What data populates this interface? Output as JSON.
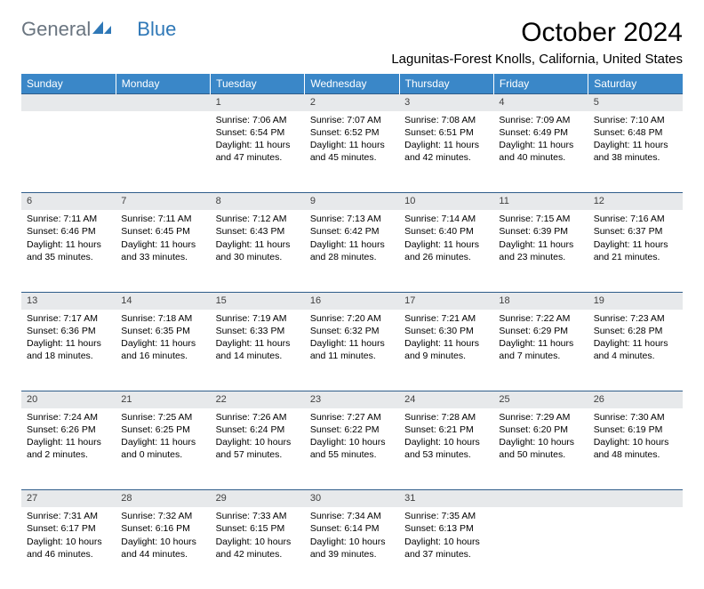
{
  "logo": {
    "part1": "General",
    "part2": "Blue"
  },
  "title": "October 2024",
  "location": "Lagunitas-Forest Knolls, California, United States",
  "colors": {
    "header_bg": "#3a87c8",
    "header_text": "#ffffff",
    "rule": "#2f5d8a",
    "daynum_bg": "#e7e9eb",
    "logo_gray": "#6a7580",
    "logo_blue": "#2f78b7"
  },
  "fonts": {
    "title_size": 30,
    "location_size": 15,
    "header_size": 12,
    "cell_size": 10.5
  },
  "days": [
    "Sunday",
    "Monday",
    "Tuesday",
    "Wednesday",
    "Thursday",
    "Friday",
    "Saturday"
  ],
  "weeks": [
    [
      null,
      null,
      {
        "n": "1",
        "sunrise": "7:06 AM",
        "sunset": "6:54 PM",
        "dl": "11 hours and 47 minutes."
      },
      {
        "n": "2",
        "sunrise": "7:07 AM",
        "sunset": "6:52 PM",
        "dl": "11 hours and 45 minutes."
      },
      {
        "n": "3",
        "sunrise": "7:08 AM",
        "sunset": "6:51 PM",
        "dl": "11 hours and 42 minutes."
      },
      {
        "n": "4",
        "sunrise": "7:09 AM",
        "sunset": "6:49 PM",
        "dl": "11 hours and 40 minutes."
      },
      {
        "n": "5",
        "sunrise": "7:10 AM",
        "sunset": "6:48 PM",
        "dl": "11 hours and 38 minutes."
      }
    ],
    [
      {
        "n": "6",
        "sunrise": "7:11 AM",
        "sunset": "6:46 PM",
        "dl": "11 hours and 35 minutes."
      },
      {
        "n": "7",
        "sunrise": "7:11 AM",
        "sunset": "6:45 PM",
        "dl": "11 hours and 33 minutes."
      },
      {
        "n": "8",
        "sunrise": "7:12 AM",
        "sunset": "6:43 PM",
        "dl": "11 hours and 30 minutes."
      },
      {
        "n": "9",
        "sunrise": "7:13 AM",
        "sunset": "6:42 PM",
        "dl": "11 hours and 28 minutes."
      },
      {
        "n": "10",
        "sunrise": "7:14 AM",
        "sunset": "6:40 PM",
        "dl": "11 hours and 26 minutes."
      },
      {
        "n": "11",
        "sunrise": "7:15 AM",
        "sunset": "6:39 PM",
        "dl": "11 hours and 23 minutes."
      },
      {
        "n": "12",
        "sunrise": "7:16 AM",
        "sunset": "6:37 PM",
        "dl": "11 hours and 21 minutes."
      }
    ],
    [
      {
        "n": "13",
        "sunrise": "7:17 AM",
        "sunset": "6:36 PM",
        "dl": "11 hours and 18 minutes."
      },
      {
        "n": "14",
        "sunrise": "7:18 AM",
        "sunset": "6:35 PM",
        "dl": "11 hours and 16 minutes."
      },
      {
        "n": "15",
        "sunrise": "7:19 AM",
        "sunset": "6:33 PM",
        "dl": "11 hours and 14 minutes."
      },
      {
        "n": "16",
        "sunrise": "7:20 AM",
        "sunset": "6:32 PM",
        "dl": "11 hours and 11 minutes."
      },
      {
        "n": "17",
        "sunrise": "7:21 AM",
        "sunset": "6:30 PM",
        "dl": "11 hours and 9 minutes."
      },
      {
        "n": "18",
        "sunrise": "7:22 AM",
        "sunset": "6:29 PM",
        "dl": "11 hours and 7 minutes."
      },
      {
        "n": "19",
        "sunrise": "7:23 AM",
        "sunset": "6:28 PM",
        "dl": "11 hours and 4 minutes."
      }
    ],
    [
      {
        "n": "20",
        "sunrise": "7:24 AM",
        "sunset": "6:26 PM",
        "dl": "11 hours and 2 minutes."
      },
      {
        "n": "21",
        "sunrise": "7:25 AM",
        "sunset": "6:25 PM",
        "dl": "11 hours and 0 minutes."
      },
      {
        "n": "22",
        "sunrise": "7:26 AM",
        "sunset": "6:24 PM",
        "dl": "10 hours and 57 minutes."
      },
      {
        "n": "23",
        "sunrise": "7:27 AM",
        "sunset": "6:22 PM",
        "dl": "10 hours and 55 minutes."
      },
      {
        "n": "24",
        "sunrise": "7:28 AM",
        "sunset": "6:21 PM",
        "dl": "10 hours and 53 minutes."
      },
      {
        "n": "25",
        "sunrise": "7:29 AM",
        "sunset": "6:20 PM",
        "dl": "10 hours and 50 minutes."
      },
      {
        "n": "26",
        "sunrise": "7:30 AM",
        "sunset": "6:19 PM",
        "dl": "10 hours and 48 minutes."
      }
    ],
    [
      {
        "n": "27",
        "sunrise": "7:31 AM",
        "sunset": "6:17 PM",
        "dl": "10 hours and 46 minutes."
      },
      {
        "n": "28",
        "sunrise": "7:32 AM",
        "sunset": "6:16 PM",
        "dl": "10 hours and 44 minutes."
      },
      {
        "n": "29",
        "sunrise": "7:33 AM",
        "sunset": "6:15 PM",
        "dl": "10 hours and 42 minutes."
      },
      {
        "n": "30",
        "sunrise": "7:34 AM",
        "sunset": "6:14 PM",
        "dl": "10 hours and 39 minutes."
      },
      {
        "n": "31",
        "sunrise": "7:35 AM",
        "sunset": "6:13 PM",
        "dl": "10 hours and 37 minutes."
      },
      null,
      null
    ]
  ],
  "labels": {
    "sunrise": "Sunrise:",
    "sunset": "Sunset:",
    "daylight": "Daylight:"
  }
}
